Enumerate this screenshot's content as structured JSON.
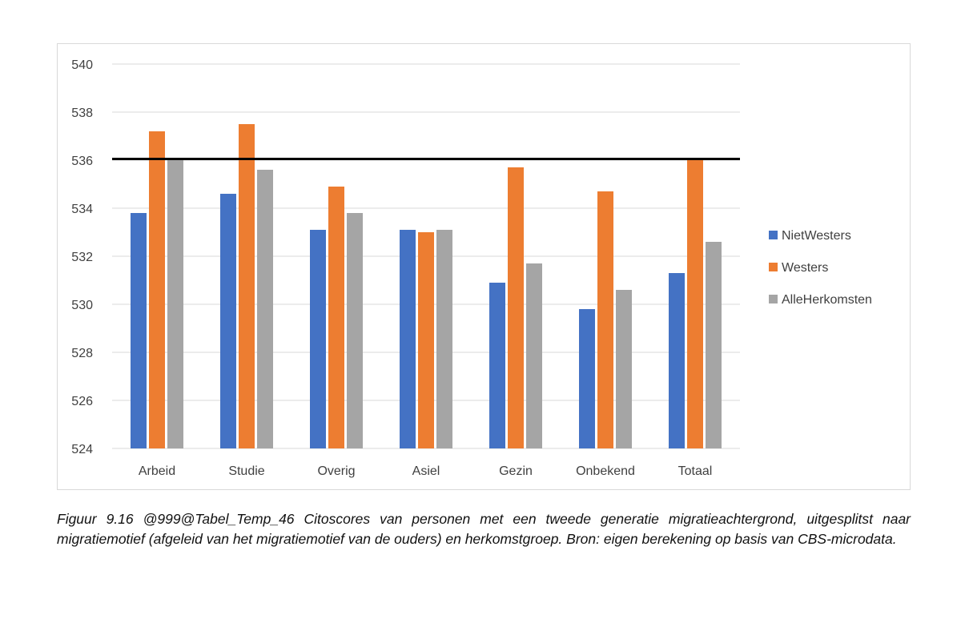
{
  "chart_data": {
    "type": "bar",
    "categories": [
      "Arbeid",
      "Studie",
      "Overig",
      "Asiel",
      "Gezin",
      "Onbekend",
      "Totaal"
    ],
    "series": [
      {
        "name": "NietWesters",
        "color": "#4472c4",
        "values": [
          533.8,
          534.6,
          533.1,
          533.1,
          530.9,
          529.8,
          531.3
        ]
      },
      {
        "name": "Westers",
        "color": "#ed7d31",
        "values": [
          537.2,
          537.5,
          534.9,
          533.0,
          535.7,
          534.7,
          536.1
        ]
      },
      {
        "name": "AlleHerkomsten",
        "color": "#a5a5a5",
        "values": [
          536.0,
          535.6,
          533.8,
          533.1,
          531.7,
          530.6,
          532.6
        ]
      }
    ],
    "ylim": [
      524,
      540
    ],
    "yticks": [
      "524",
      "526",
      "528",
      "530",
      "532",
      "534",
      "536",
      "538",
      "540"
    ],
    "reference_line": 536.05,
    "grid": true,
    "legend": "right"
  },
  "caption": "Figuur 9.16 @999@Tabel_Temp_46 Citoscores van personen met een tweede generatie migratieachtergrond, uitgesplitst naar migratiemotief (afgeleid van het migratiemotief van de ouders) en herkomstgroep. Bron: eigen berekening op basis van CBS-microdata."
}
